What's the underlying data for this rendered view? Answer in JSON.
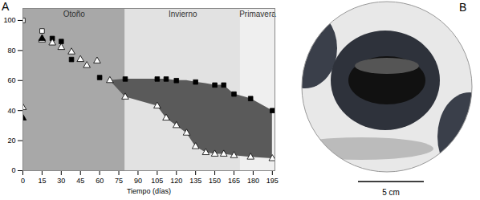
{
  "chart_data": {
    "type": "scatter",
    "title": "A",
    "x_label": "Tiempo (días)",
    "xlim": [
      0,
      197
    ],
    "xticks": [
      0,
      15,
      30,
      45,
      60,
      75,
      90,
      105,
      120,
      135,
      150,
      165,
      180,
      195
    ],
    "ylim": [
      0,
      108
    ],
    "yticks": [
      0,
      20,
      40,
      60,
      80,
      100
    ],
    "seasons": [
      {
        "label": "Otoño",
        "start": 0,
        "end": 80,
        "color": "#a8a8a8"
      },
      {
        "label": "Invierno",
        "start": 80,
        "end": 170,
        "color": "#e2e2e2"
      },
      {
        "label": "Primavera",
        "start": 170,
        "end": 197,
        "color": "#efefef"
      }
    ],
    "band": {
      "color": "#5a5a5a",
      "x": [
        68,
        80,
        105,
        112,
        120,
        128,
        135,
        143,
        150,
        157,
        165,
        178,
        195
      ],
      "low": [
        60,
        49,
        43,
        35,
        30,
        25,
        16,
        12,
        11,
        11,
        10,
        9,
        8
      ],
      "high": [
        60,
        61,
        61,
        61,
        60,
        60,
        59,
        58,
        57,
        57,
        51,
        48,
        40
      ]
    },
    "series": [
      {
        "marker": "square",
        "color": "#000000",
        "x": [
          23,
          30,
          38,
          60,
          80,
          105,
          112,
          120,
          135,
          150,
          157,
          165,
          178,
          195
        ],
        "values": [
          88,
          86,
          74,
          62,
          61,
          61,
          61,
          60,
          59,
          57,
          57,
          51,
          48,
          40
        ]
      },
      {
        "marker": "square",
        "color": "#ffffff",
        "x": [
          0,
          15
        ],
        "values": [
          100,
          93
        ]
      },
      {
        "marker": "triangle",
        "color": "#ffffff",
        "x": [
          0,
          15,
          23,
          30,
          38,
          45,
          50,
          58,
          68,
          80,
          105,
          112,
          120,
          128,
          135,
          143,
          150,
          157,
          165,
          178,
          195
        ],
        "values": [
          42,
          87,
          85,
          82,
          79,
          74,
          70,
          73,
          60,
          49,
          43,
          35,
          30,
          25,
          16,
          12,
          11,
          11,
          10,
          9,
          8
        ]
      },
      {
        "marker": "triangle",
        "color": "#000000",
        "x": [
          0,
          15
        ],
        "values": [
          35,
          88
        ]
      }
    ]
  },
  "image": {
    "label": "B",
    "scale_bar": "5 cm"
  }
}
